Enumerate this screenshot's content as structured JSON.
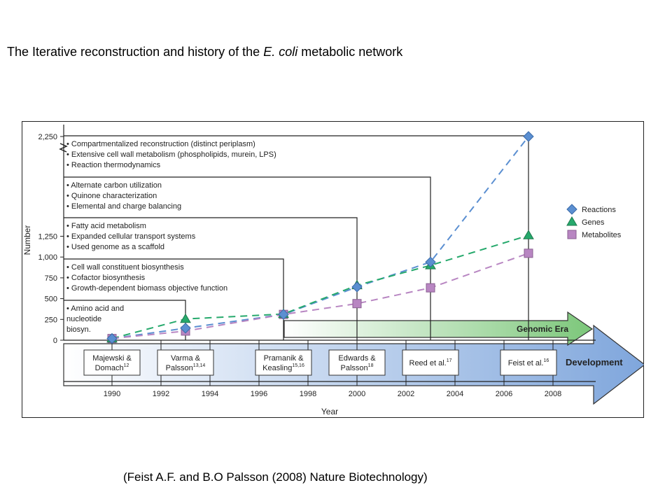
{
  "slide": {
    "title_pre": "The Iterative reconstruction and history of the ",
    "title_italic": "E. coli",
    "title_post": " metabolic network",
    "citation": "(Feist A.F. and B.O Palsson (2008) Nature Biotechnology)"
  },
  "chart_data": {
    "type": "line",
    "xlabel": "Year",
    "ylabel": "Number",
    "x_ticks": [
      "1990",
      "1992",
      "1994",
      "1996",
      "1998",
      "2000",
      "2002",
      "2004",
      "2006",
      "2008"
    ],
    "y_ticks": [
      "0",
      "250",
      "500",
      "750",
      "1,000",
      "1,250",
      "2,250"
    ],
    "y_axis_break": "between 1,250 and 2,250",
    "series": [
      {
        "name": "Reactions",
        "marker": "diamond",
        "color": "#5b8fd1",
        "x": [
          1990,
          1993,
          1997,
          2000,
          2003,
          2007
        ],
        "y": [
          20,
          145,
          310,
          640,
          940,
          2250
        ]
      },
      {
        "name": "Genes",
        "marker": "triangle",
        "color": "#26a96c",
        "x": [
          1990,
          1993,
          1997,
          2000,
          2003,
          2007
        ],
        "y": [
          20,
          255,
          315,
          660,
          900,
          1260
        ]
      },
      {
        "name": "Metabolites",
        "marker": "square",
        "color": "#b886c2",
        "x": [
          1990,
          1993,
          1997,
          2000,
          2003,
          2007
        ],
        "y": [
          20,
          110,
          310,
          440,
          630,
          1045
        ]
      }
    ],
    "milestones": [
      {
        "label": "Majewski &\nDomach",
        "ref": "12",
        "year": 1990
      },
      {
        "label": "Varma &\nPalsson",
        "ref": "13,14",
        "year": 1993
      },
      {
        "label": "Pramanik &\nKeasling",
        "ref": "15,16",
        "year": 1997
      },
      {
        "label": "Edwards &\nPalsson",
        "ref": "18",
        "year": 2000
      },
      {
        "label": "Reed et al.",
        "ref": "17",
        "year": 2003
      },
      {
        "label": "Feist et al.",
        "ref": "16",
        "year": 2007
      }
    ],
    "annotations": [
      {
        "items": [
          "Amino acid and",
          "nucleotide",
          "biosyn."
        ]
      },
      {
        "items": [
          "Cell wall constituent biosynthesis",
          "Cofactor biosynthesis",
          "Growth-dependent biomass objective function"
        ]
      },
      {
        "items": [
          "Fatty acid metabolism",
          "Expanded cellular transport systems",
          "Used genome as a scaffold"
        ]
      },
      {
        "items": [
          "Alternate carbon utilization",
          "Quinone characterization",
          "Elemental and charge balancing"
        ]
      },
      {
        "items": [
          "Compartmentalized reconstruction (distinct periplasm)",
          "Extensive cell wall metabolism (phospholipids, murein, LPS)",
          "Reaction thermodynamics"
        ]
      }
    ],
    "arrows": [
      {
        "label": "Genomic Era",
        "color": "#8fcf8a"
      },
      {
        "label": "Development",
        "color": "#8fb3e0"
      }
    ],
    "legend_position": "right"
  }
}
